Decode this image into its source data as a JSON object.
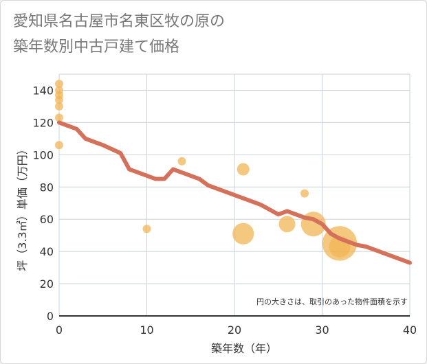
{
  "title": {
    "line1": "愛知県名古屋市名東区牧の原の",
    "line2": "築年数別中古戸建て価格"
  },
  "chart_data": {
    "type": "scatter",
    "title": "愛知県名古屋市名東区牧の原の築年数別中古戸建て価格",
    "xlabel": "築年数（年）",
    "ylabel": "坪（3.3㎡）単価（万円）",
    "xlim": [
      0,
      40
    ],
    "ylim": [
      0,
      150
    ],
    "xticks": [
      0,
      10,
      20,
      30,
      40
    ],
    "yticks": [
      0,
      20,
      40,
      60,
      80,
      100,
      120,
      140
    ],
    "grid": true,
    "note": "円の大きさは、取引のあった物件面積を示す",
    "colors": {
      "bubble": "#f1b655",
      "trend": "#d5705a",
      "grid": "#c8d3dc"
    },
    "scatter": [
      {
        "x": 0,
        "y": 144,
        "size": 1
      },
      {
        "x": 0,
        "y": 140,
        "size": 1
      },
      {
        "x": 0,
        "y": 137,
        "size": 1
      },
      {
        "x": 0,
        "y": 134,
        "size": 1
      },
      {
        "x": 0,
        "y": 130,
        "size": 1
      },
      {
        "x": 0,
        "y": 123,
        "size": 1
      },
      {
        "x": 0,
        "y": 106,
        "size": 1
      },
      {
        "x": 10,
        "y": 54,
        "size": 1
      },
      {
        "x": 14,
        "y": 96,
        "size": 1
      },
      {
        "x": 21,
        "y": 91,
        "size": 1.5
      },
      {
        "x": 21,
        "y": 51,
        "size": 2.6
      },
      {
        "x": 26,
        "y": 57,
        "size": 2
      },
      {
        "x": 28,
        "y": 76,
        "size": 1
      },
      {
        "x": 29,
        "y": 57,
        "size": 3
      },
      {
        "x": 32,
        "y": 45,
        "size": 4.2
      },
      {
        "x": 32,
        "y": 43,
        "size": 2.6
      }
    ],
    "trend": {
      "x": [
        0,
        2,
        3,
        5,
        7,
        8,
        10,
        11,
        12,
        13,
        14,
        16,
        17,
        19,
        21,
        23,
        24,
        25,
        26,
        28,
        29,
        30,
        31,
        32,
        33,
        34,
        35,
        40
      ],
      "y": [
        120,
        116,
        110,
        106,
        101,
        91,
        87,
        85,
        85,
        91,
        89,
        85,
        81,
        77,
        73,
        69,
        66,
        63,
        65,
        61,
        60,
        57,
        51,
        48,
        46,
        44,
        43,
        33
      ]
    }
  }
}
